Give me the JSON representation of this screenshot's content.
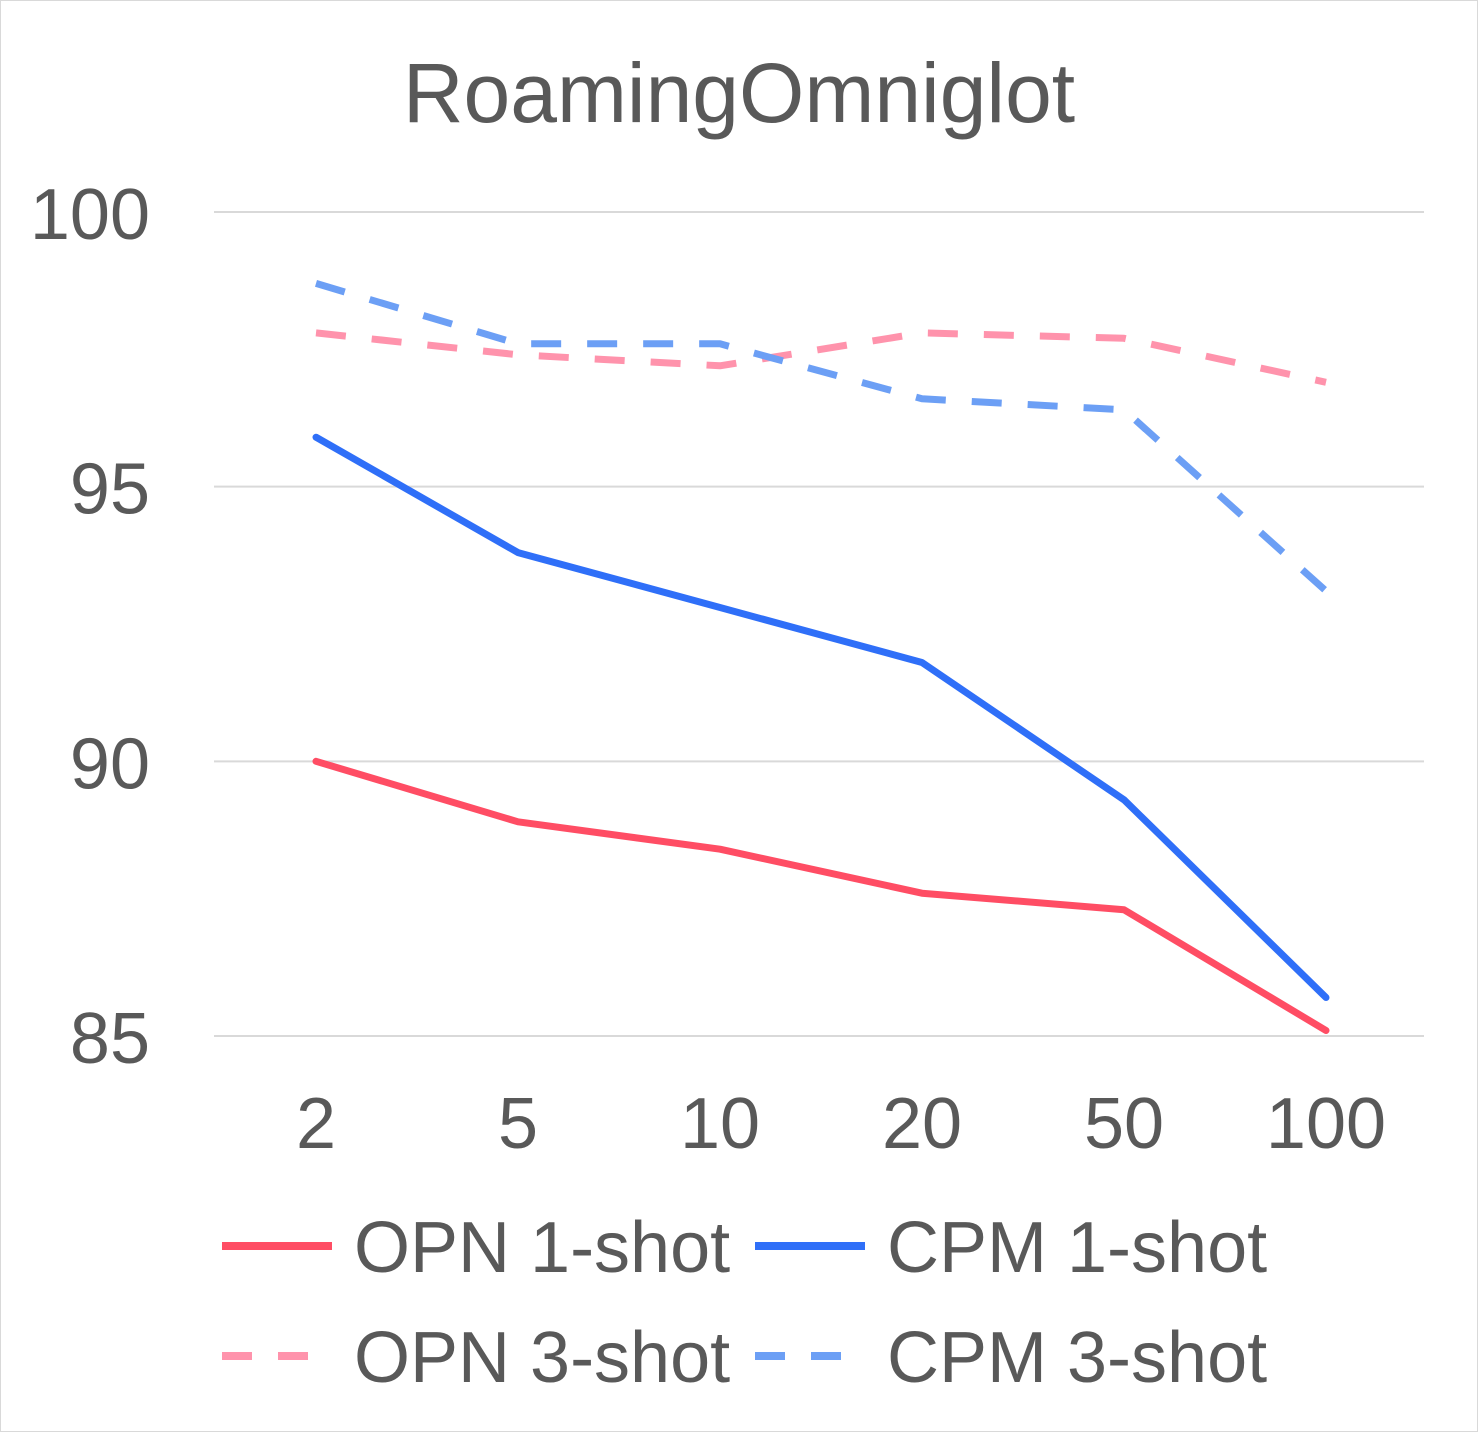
{
  "chart_data": {
    "type": "line",
    "title": "RoamingOmniglot",
    "xlabel": "",
    "ylabel": "",
    "categories": [
      "2",
      "5",
      "10",
      "20",
      "50",
      "100"
    ],
    "ylim": [
      85,
      100
    ],
    "yticks": [
      "85",
      "90",
      "95",
      "100"
    ],
    "grid": true,
    "legend_position": "bottom",
    "series": [
      {
        "name": "OPN 1-shot",
        "values": [
          90.0,
          88.9,
          88.4,
          87.6,
          87.3,
          85.1
        ],
        "color": "#ff4d64",
        "dashed": false
      },
      {
        "name": "CPM 1-shot",
        "values": [
          95.9,
          93.8,
          92.8,
          91.8,
          89.3,
          85.7
        ],
        "color": "#2f6ff8",
        "dashed": false
      },
      {
        "name": "OPN 3-shot",
        "values": [
          97.8,
          97.4,
          97.2,
          97.8,
          97.7,
          96.9
        ],
        "color": "#ff93ac",
        "dashed": true
      },
      {
        "name": "CPM 3-shot",
        "values": [
          98.7,
          97.6,
          97.6,
          96.6,
          96.4,
          93.1
        ],
        "color": "#6c9ff5",
        "dashed": true
      }
    ]
  }
}
